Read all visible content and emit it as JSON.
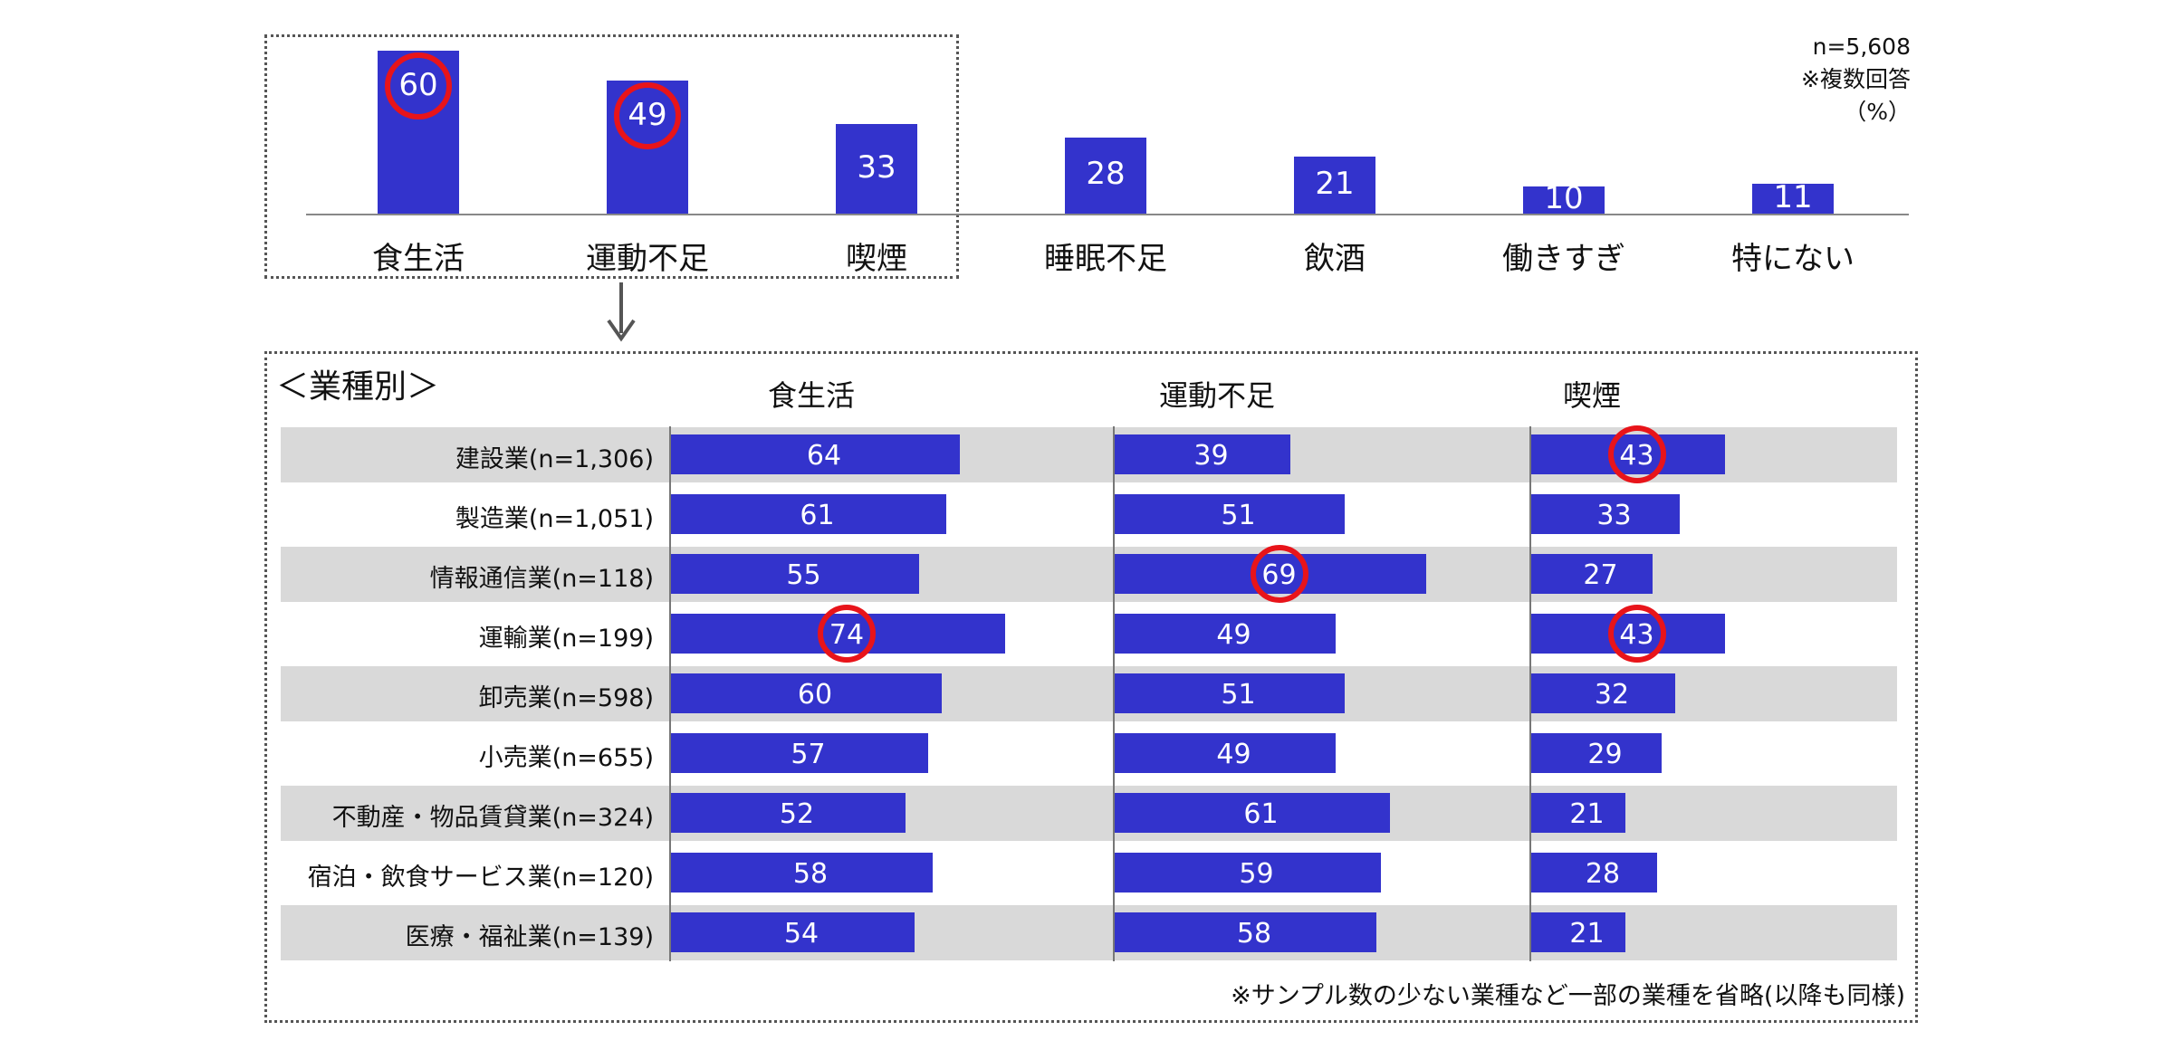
{
  "colors": {
    "bar": "#3333cc",
    "highlight": "#e8141a",
    "row_band": "#d9d9d9"
  },
  "notes": {
    "n": "n=5,608",
    "multi": "※複数回答",
    "unit": "（%）"
  },
  "chart_data": [
    {
      "type": "bar",
      "categories": [
        "食生活",
        "運動不足",
        "喫煙",
        "睡眠不足",
        "飲酒",
        "働きすぎ",
        "特にない"
      ],
      "values": [
        60,
        49,
        33,
        28,
        21,
        10,
        11
      ],
      "highlighted": [
        "食生活",
        "運動不足"
      ]
    },
    {
      "type": "bar",
      "orientation": "horizontal",
      "title": "＜業種別＞",
      "categories": [
        "建設業(n=1,306)",
        "製造業(n=1,051)",
        "情報通信業(n=118)",
        "運輸業(n=199)",
        "卸売業(n=598)",
        "小売業(n=655)",
        "不動産・物品賃貸業(n=324)",
        "宿泊・飲食サービス業(n=120)",
        "医療・福祉業(n=139)"
      ],
      "series": [
        {
          "name": "食生活",
          "values": [
            64,
            61,
            55,
            74,
            60,
            57,
            52,
            58,
            54
          ],
          "highlighted": [
            3
          ]
        },
        {
          "name": "運動不足",
          "values": [
            39,
            51,
            69,
            49,
            51,
            49,
            61,
            59,
            58
          ],
          "highlighted": [
            2
          ]
        },
        {
          "name": "喫煙",
          "values": [
            43,
            33,
            27,
            43,
            32,
            29,
            21,
            28,
            21
          ],
          "highlighted": [
            0,
            3
          ]
        }
      ],
      "footnote": "※サンプル数の少ない業種など一部の業種を省略(以降も同様)"
    }
  ]
}
